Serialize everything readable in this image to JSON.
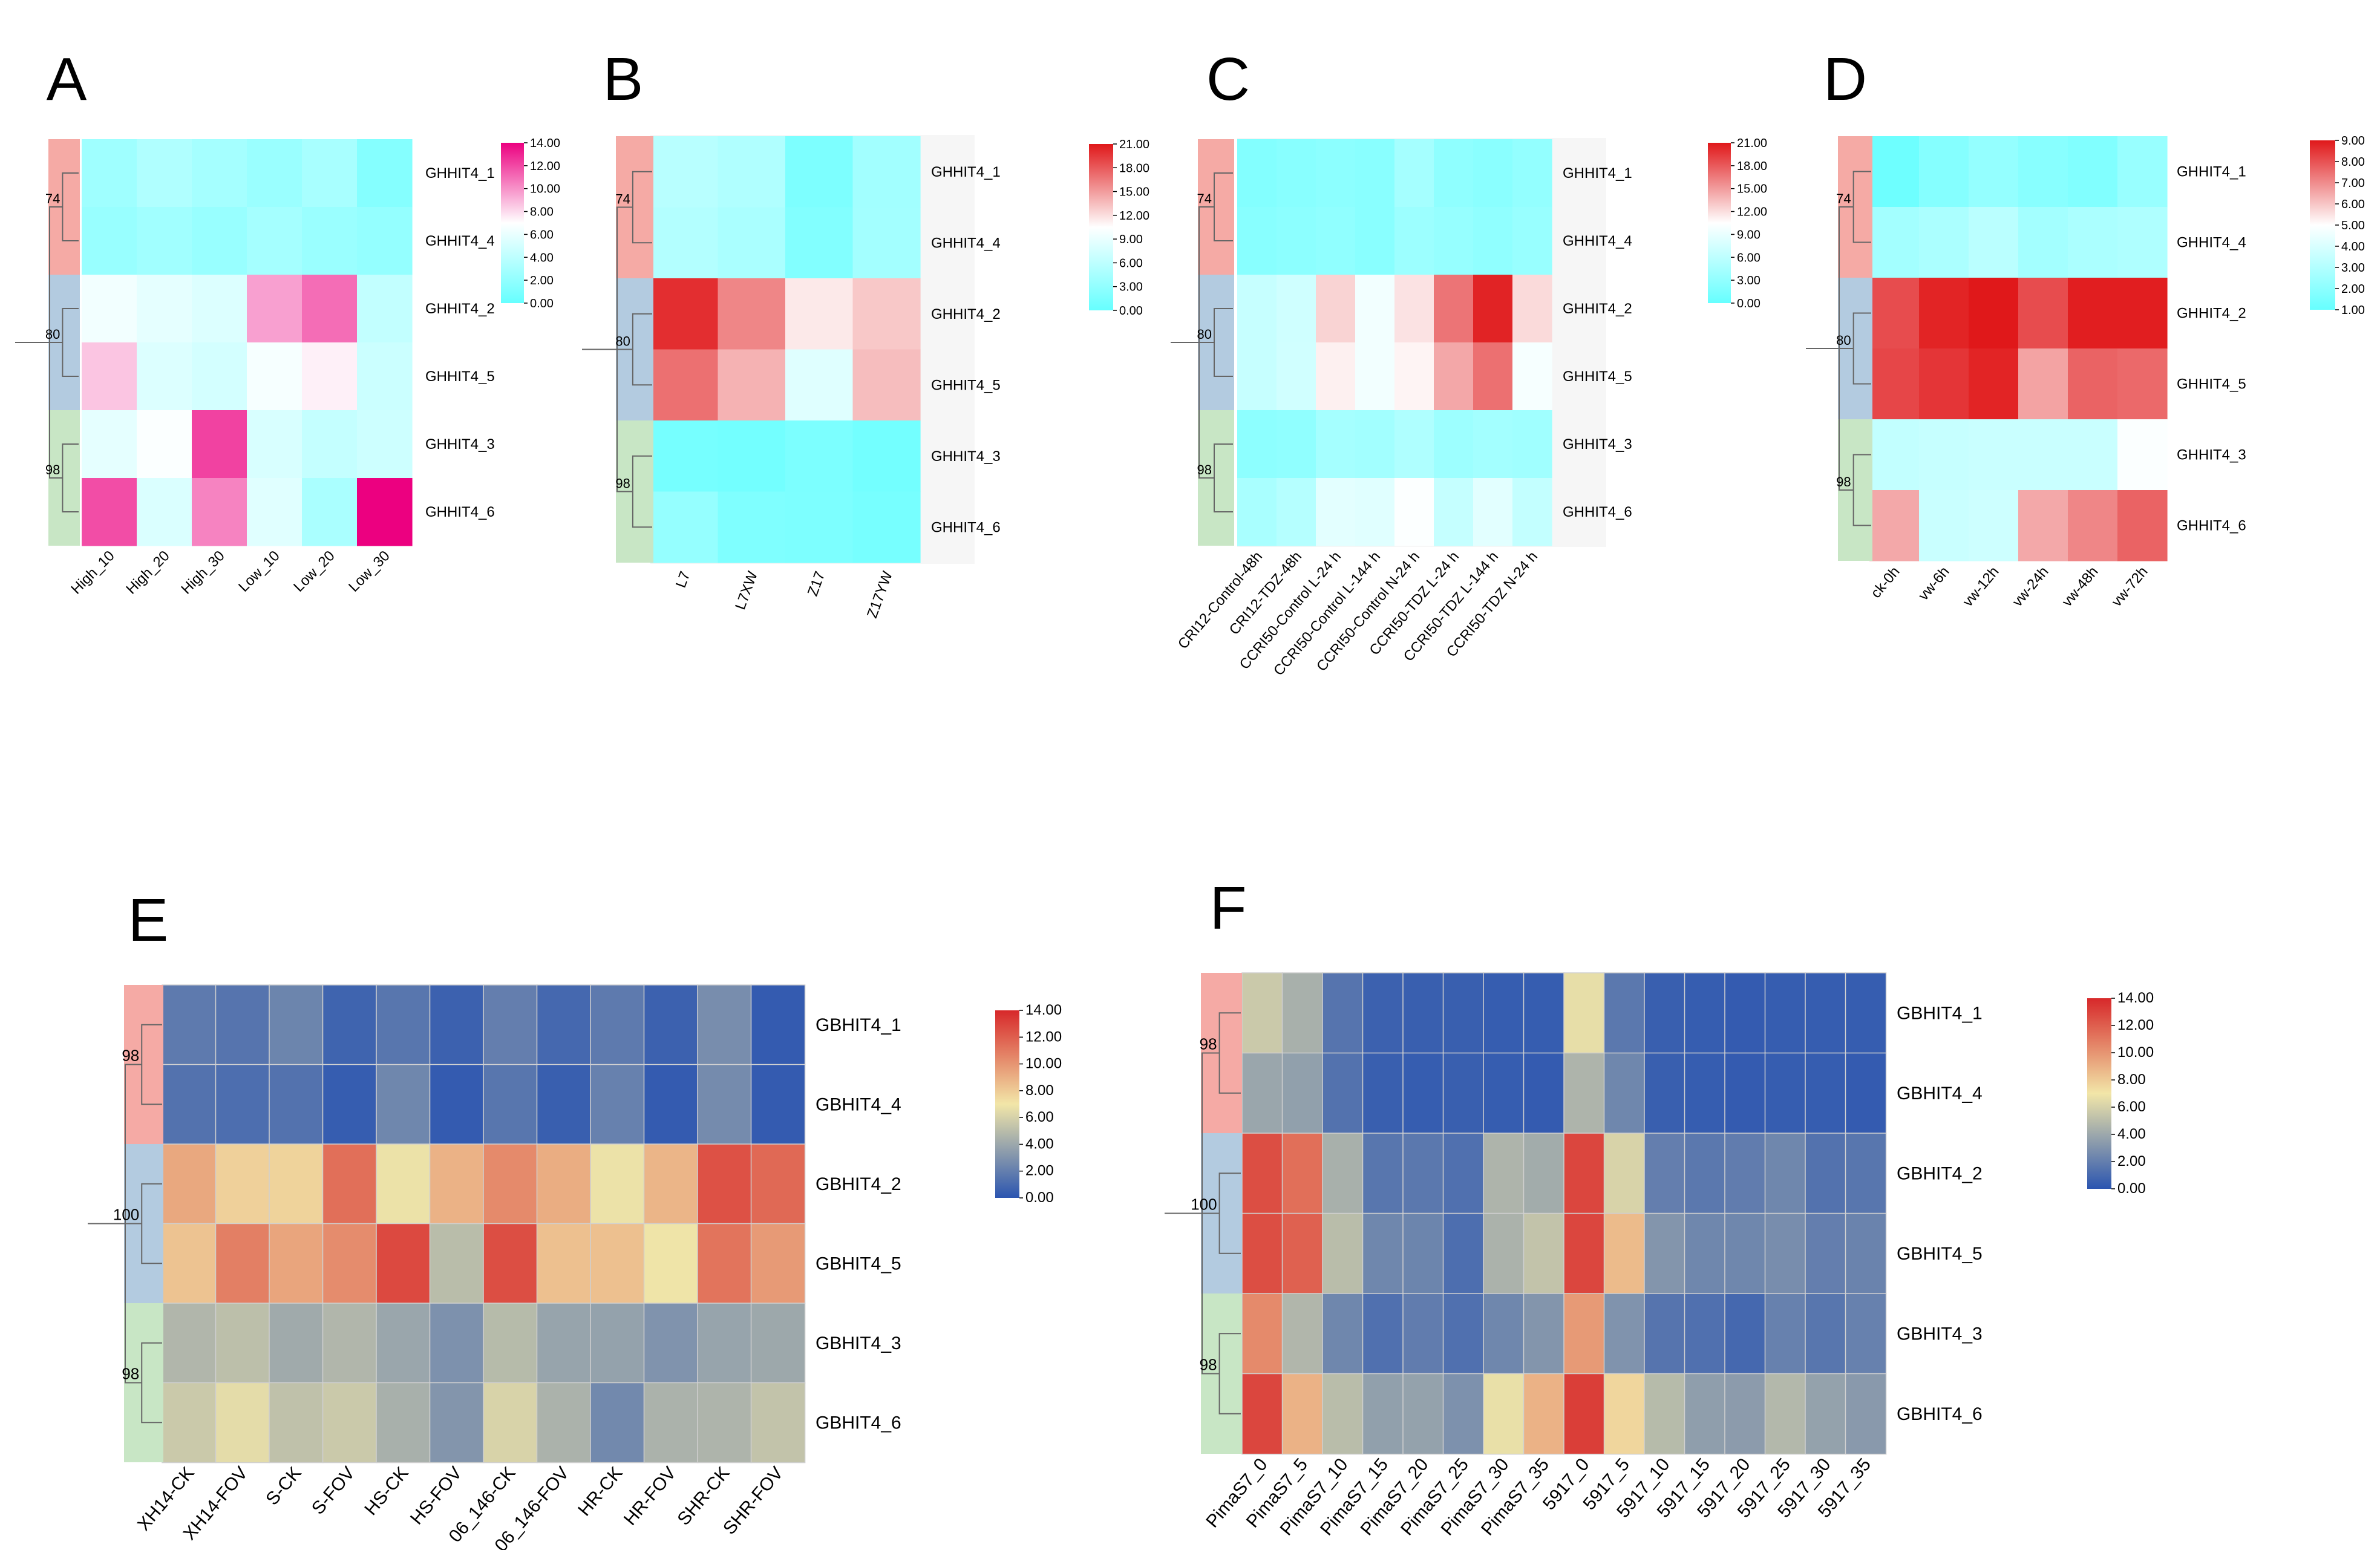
{
  "figure": {
    "panels": [
      "A",
      "B",
      "C",
      "D",
      "E",
      "F"
    ]
  },
  "chart_data": [
    {
      "panel": "A",
      "type": "heatmap",
      "rows": [
        "GHHIT4_1",
        "GHHIT4_4",
        "GHHIT4_2",
        "GHHIT4_5",
        "GHHIT4_3",
        "GHHIT4_6"
      ],
      "columns": [
        "High_10",
        "High_20",
        "High_30",
        "Low_10",
        "Low_20",
        "Low_30"
      ],
      "values": [
        [
          2.6,
          3.4,
          2.9,
          2.4,
          3.0,
          1.4
        ],
        [
          2.3,
          2.7,
          2.3,
          2.9,
          2.4,
          2.1
        ],
        [
          6.4,
          5.8,
          5.4,
          9.6,
          11.0,
          4.2
        ],
        [
          8.6,
          5.4,
          5.0,
          6.6,
          7.4,
          4.6
        ],
        [
          5.8,
          6.8,
          12.2,
          5.2,
          4.3,
          4.7
        ],
        [
          11.9,
          5.3,
          10.4,
          5.6,
          3.1,
          14.0
        ]
      ],
      "colorscale": {
        "min": 0,
        "max": 14,
        "stops": [
          "#66ffff",
          "#ffffff",
          "#ec0080"
        ],
        "ticks": [
          "14.00",
          "12.00",
          "10.00",
          "8.00",
          "6.00",
          "4.00",
          "2.00",
          "0.00"
        ]
      },
      "clusters": [
        {
          "label": "74",
          "color": "#f5aaa5"
        },
        {
          "label": "80",
          "color": "#b3cbe0"
        },
        {
          "label": "98",
          "color": "#c8e6c5"
        }
      ]
    },
    {
      "panel": "B",
      "type": "heatmap",
      "rows": [
        "GHHIT4_1",
        "GHHIT4_4",
        "GHHIT4_2",
        "GHHIT4_5",
        "GHHIT4_3",
        "GHHIT4_6"
      ],
      "columns": [
        "L7",
        "L7XW",
        "Z17",
        "Z17YW"
      ],
      "values": [
        [
          5.6,
          5.1,
          1.6,
          4.1
        ],
        [
          5.3,
          4.7,
          1.9,
          4.2
        ],
        [
          20.0,
          16.0,
          11.5,
          13.0
        ],
        [
          17.0,
          14.0,
          8.3,
          13.5
        ],
        [
          1.1,
          0.9,
          1.5,
          0.9
        ],
        [
          3.2,
          1.7,
          1.6,
          1.2
        ]
      ],
      "colorscale": {
        "min": 0,
        "max": 21,
        "stops": [
          "#66ffff",
          "#ffffff",
          "#e0181a"
        ],
        "ticks": [
          "21.00",
          "18.00",
          "15.00",
          "12.00",
          "9.00",
          "6.00",
          "3.00",
          "0.00"
        ]
      },
      "clusters": [
        {
          "label": "74",
          "color": "#f5aaa5"
        },
        {
          "label": "80",
          "color": "#b3cbe0"
        },
        {
          "label": "98",
          "color": "#c8e6c5"
        }
      ]
    },
    {
      "panel": "C",
      "type": "heatmap",
      "rows": [
        "GHHIT4_1",
        "GHHIT4_4",
        "GHHIT4_2",
        "GHHIT4_5",
        "GHHIT4_3",
        "GHHIT4_6"
      ],
      "columns": [
        "CRI12-Control-48h",
        "CRI12-TDZ-48h",
        "CCRI50-Control L-24 h",
        "CCRI50-Control L-144 h",
        "CCRI50-Control N-24 h",
        "CCRI50-TDZ L-24 h",
        "CCRI50-TDZ L-144 h",
        "CCRI50-TDZ N-24 h"
      ],
      "values": [
        [
          2.0,
          2.3,
          2.6,
          2.4,
          4.3,
          2.8,
          2.5,
          3.1
        ],
        [
          2.3,
          2.6,
          2.9,
          2.4,
          3.7,
          3.3,
          2.9,
          3.4
        ],
        [
          6.6,
          7.2,
          12.5,
          9.6,
          11.8,
          16.8,
          20.5,
          12.2
        ],
        [
          6.6,
          7.3,
          11.2,
          9.6,
          11.0,
          14.5,
          17.0,
          9.9
        ],
        [
          2.7,
          2.9,
          4.3,
          4.1,
          5.0,
          3.8,
          4.2,
          4.0
        ],
        [
          4.6,
          5.4,
          8.6,
          8.4,
          10.3,
          6.5,
          8.5,
          6.4
        ]
      ],
      "colorscale": {
        "min": 0,
        "max": 21,
        "stops": [
          "#66ffff",
          "#ffffff",
          "#e0181a"
        ],
        "ticks": [
          "21.00",
          "18.00",
          "15.00",
          "12.00",
          "9.00",
          "6.00",
          "3.00",
          "0.00"
        ]
      },
      "clusters": [
        {
          "label": "74",
          "color": "#f5aaa5"
        },
        {
          "label": "80",
          "color": "#b3cbe0"
        },
        {
          "label": "98",
          "color": "#c8e6c5"
        }
      ]
    },
    {
      "panel": "D",
      "type": "heatmap",
      "rows": [
        "GHHIT4_1",
        "GHHIT4_4",
        "GHHIT4_2",
        "GHHIT4_5",
        "GHHIT4_3",
        "GHHIT4_6"
      ],
      "columns": [
        "ck-0h",
        "vw-6h",
        "vw-12h",
        "vw-24h",
        "vw-48h",
        "vw-72h"
      ],
      "values": [
        [
          1.2,
          1.8,
          2.2,
          1.9,
          1.7,
          2.3
        ],
        [
          2.6,
          2.8,
          3.2,
          2.6,
          2.8,
          2.9
        ],
        [
          8.1,
          8.8,
          9.0,
          8.1,
          8.9,
          8.9
        ],
        [
          8.2,
          8.5,
          8.8,
          6.6,
          7.7,
          7.6
        ],
        [
          3.4,
          3.5,
          3.6,
          3.6,
          3.6,
          4.9
        ],
        [
          6.5,
          3.6,
          3.7,
          6.5,
          7.1,
          7.7
        ]
      ],
      "colorscale": {
        "min": 1,
        "max": 9,
        "stops": [
          "#66ffff",
          "#ffffff",
          "#e0181a"
        ],
        "ticks": [
          "9.00",
          "8.00",
          "7.00",
          "6.00",
          "5.00",
          "4.00",
          "3.00",
          "2.00",
          "1.00"
        ]
      },
      "clusters": [
        {
          "label": "74",
          "color": "#f5aaa5"
        },
        {
          "label": "80",
          "color": "#b3cbe0"
        },
        {
          "label": "98",
          "color": "#c8e6c5"
        }
      ]
    },
    {
      "panel": "E",
      "type": "heatmap",
      "rows": [
        "GBHIT4_1",
        "GBHIT4_4",
        "GBHIT4_2",
        "GBHIT4_5",
        "GBHIT4_3",
        "GBHIT4_6"
      ],
      "columns": [
        "XH14-CK",
        "XH14-FOV",
        "S-CK",
        "S-FOV",
        "HS-CK",
        "HS-FOV",
        "06_146-CK",
        "06_146-FOV",
        "HR-CK",
        "HR-FOV",
        "SHR-CK",
        "SHR-FOV"
      ],
      "values": [
        [
          1.8,
          1.5,
          2.3,
          0.7,
          1.6,
          0.6,
          2.0,
          0.9,
          1.8,
          0.6,
          2.7,
          0.3
        ],
        [
          1.4,
          1.2,
          1.4,
          0.4,
          2.4,
          0.3,
          1.6,
          0.5,
          2.1,
          0.3,
          2.6,
          0.3
        ],
        [
          9.3,
          7.8,
          7.7,
          11.4,
          6.8,
          8.9,
          10.4,
          9.1,
          6.8,
          8.8,
          12.5,
          11.6
        ],
        [
          8.3,
          10.8,
          9.4,
          10.3,
          12.8,
          5.0,
          12.6,
          8.4,
          8.4,
          6.9,
          11.2,
          9.8
        ],
        [
          4.7,
          5.1,
          4.1,
          4.7,
          3.9,
          2.9,
          4.9,
          3.8,
          3.7,
          3.0,
          3.8,
          4.0
        ],
        [
          5.6,
          6.5,
          5.2,
          5.6,
          4.4,
          3.1,
          6.1,
          4.5,
          2.5,
          4.5,
          4.6,
          5.3
        ]
      ],
      "colorscale": {
        "min": 0,
        "max": 14,
        "stops": [
          "#2b55b0",
          "#f2e6a8",
          "#d7282a"
        ],
        "ticks": [
          "14.00",
          "12.00",
          "10.00",
          "8.00",
          "6.00",
          "4.00",
          "2.00",
          "0.00"
        ]
      },
      "clusters": [
        {
          "label": "98",
          "color": "#f5aaa5"
        },
        {
          "label": "100",
          "color": "#b3cbe0"
        },
        {
          "label": "98",
          "color": "#c8e6c5"
        }
      ]
    },
    {
      "panel": "F",
      "type": "heatmap",
      "rows": [
        "GBHIT4_1",
        "GBHIT4_4",
        "GBHIT4_2",
        "GBHIT4_5",
        "GBHIT4_3",
        "GBHIT4_6"
      ],
      "columns": [
        "PimaS7_0",
        "PimaS7_5",
        "PimaS7_10",
        "PimaS7_15",
        "PimaS7_20",
        "PimaS7_25",
        "PimaS7_30",
        "PimaS7_35",
        "5917_0",
        "5917_5",
        "5917_10",
        "5917_15",
        "5917_20",
        "5917_25",
        "5917_30",
        "5917_35"
      ],
      "values": [
        [
          5.6,
          4.4,
          1.5,
          0.6,
          0.5,
          0.5,
          0.4,
          0.4,
          6.6,
          1.7,
          0.5,
          0.4,
          0.3,
          0.4,
          0.4,
          0.4
        ],
        [
          3.9,
          3.6,
          1.4,
          0.5,
          0.4,
          0.5,
          0.4,
          0.3,
          4.6,
          2.4,
          0.5,
          0.4,
          0.3,
          0.4,
          0.4,
          0.3
        ],
        [
          12.6,
          11.4,
          4.4,
          1.6,
          1.7,
          1.3,
          4.6,
          4.2,
          12.9,
          6.1,
          2.0,
          1.7,
          1.9,
          2.4,
          1.4,
          1.6
        ],
        [
          12.6,
          11.9,
          5.0,
          2.4,
          2.3,
          1.2,
          4.5,
          5.3,
          12.9,
          8.6,
          3.1,
          2.4,
          2.4,
          2.7,
          2.0,
          2.2
        ],
        [
          10.4,
          4.7,
          2.4,
          1.3,
          1.9,
          1.3,
          2.4,
          3.1,
          9.8,
          3.0,
          1.5,
          1.3,
          0.9,
          2.1,
          1.6,
          2.1
        ],
        [
          12.9,
          8.9,
          5.0,
          3.6,
          3.7,
          2.9,
          6.7,
          8.9,
          13.2,
          7.6,
          4.9,
          3.5,
          3.4,
          4.8,
          3.7,
          3.3
        ]
      ],
      "colorscale": {
        "min": 0,
        "max": 14,
        "stops": [
          "#2b55b0",
          "#f2e6a8",
          "#d7282a"
        ],
        "ticks": [
          "14.00",
          "12.00",
          "10.00",
          "8.00",
          "6.00",
          "4.00",
          "2.00",
          "0.00"
        ]
      },
      "clusters": [
        {
          "label": "98",
          "color": "#f5aaa5"
        },
        {
          "label": "100",
          "color": "#b3cbe0"
        },
        {
          "label": "98",
          "color": "#c8e6c5"
        }
      ]
    }
  ]
}
